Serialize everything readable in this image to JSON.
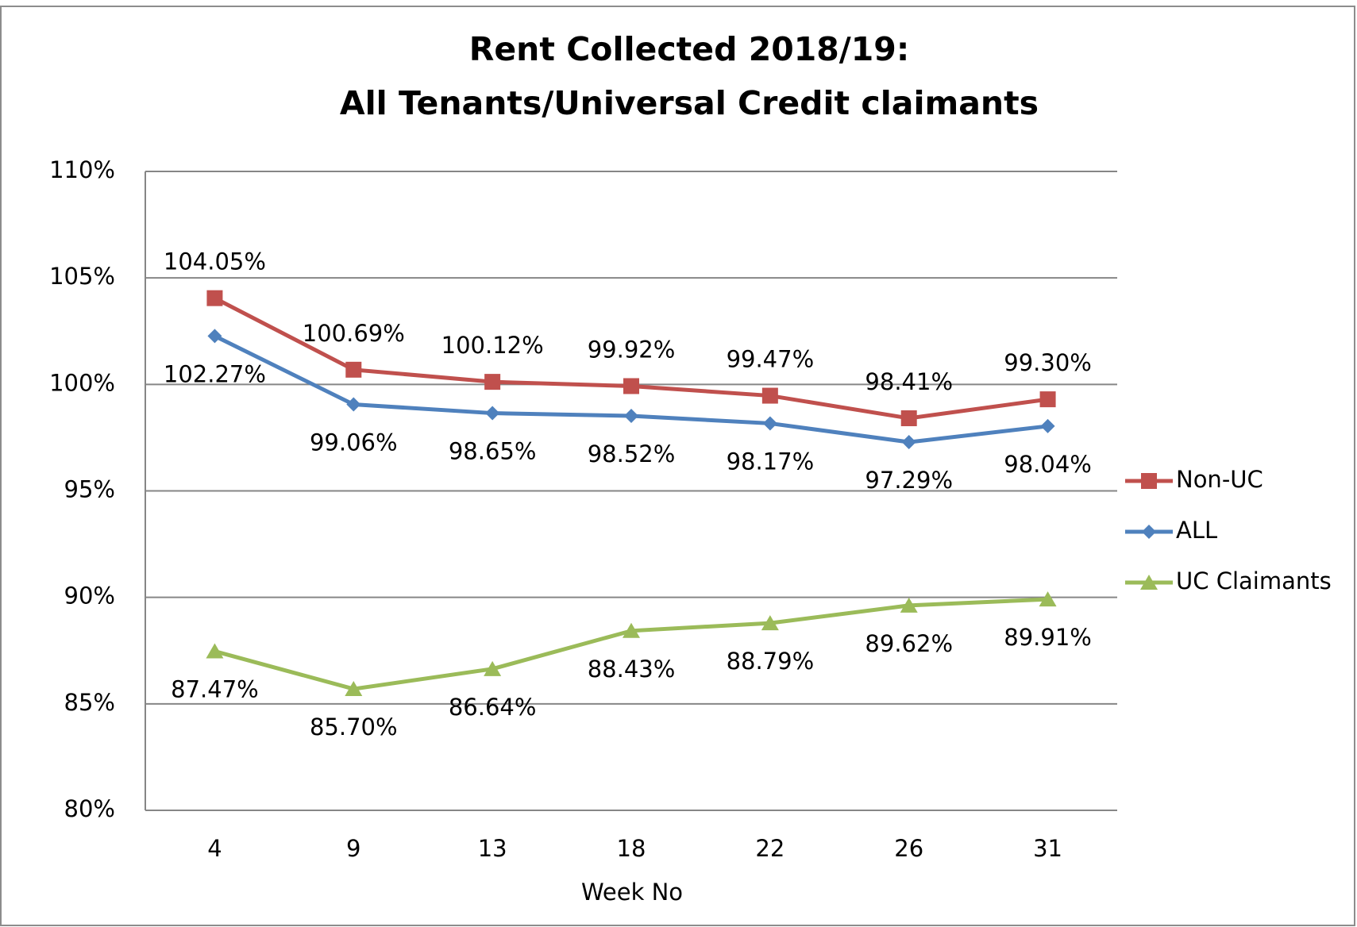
{
  "chart_data": {
    "type": "line",
    "title": [
      "Rent Collected 2018/19:",
      "All Tenants/Universal Credit claimants"
    ],
    "x_label": "Week No",
    "categories": [
      "4",
      "9",
      "13",
      "18",
      "22",
      "26",
      "31"
    ],
    "ylim": [
      80,
      110
    ],
    "yticks": [
      {
        "value": 80,
        "label": "80%"
      },
      {
        "value": 85,
        "label": "85%"
      },
      {
        "value": 90,
        "label": "90%"
      },
      {
        "value": 95,
        "label": "95%"
      },
      {
        "value": 100,
        "label": "100%"
      },
      {
        "value": 105,
        "label": "105%"
      },
      {
        "value": 110,
        "label": "110%"
      }
    ],
    "grid": true,
    "legend": "right",
    "series": [
      {
        "name": "Non-UC",
        "color": "#c0504d",
        "marker": "square",
        "label_position": "above",
        "values": [
          104.05,
          100.69,
          100.12,
          99.92,
          99.47,
          98.41,
          99.3
        ],
        "value_labels": [
          "104.05%",
          "100.69%",
          "100.12%",
          "99.92%",
          "99.47%",
          "98.41%",
          "99.30%"
        ]
      },
      {
        "name": "ALL",
        "color": "#4f81bd",
        "marker": "diamond",
        "label_position": "below",
        "values": [
          102.27,
          99.06,
          98.65,
          98.52,
          98.17,
          97.29,
          98.04
        ],
        "value_labels": [
          "102.27%",
          "99.06%",
          "98.65%",
          "98.52%",
          "98.17%",
          "97.29%",
          "98.04%"
        ]
      },
      {
        "name": "UC Claimants",
        "color": "#9bbb59",
        "marker": "triangle",
        "label_position": "below",
        "values": [
          87.47,
          85.7,
          86.64,
          88.43,
          88.79,
          89.62,
          89.91
        ],
        "value_labels": [
          "87.47%",
          "85.70%",
          "86.64%",
          "88.43%",
          "88.79%",
          "89.62%",
          "89.91%"
        ]
      }
    ]
  }
}
